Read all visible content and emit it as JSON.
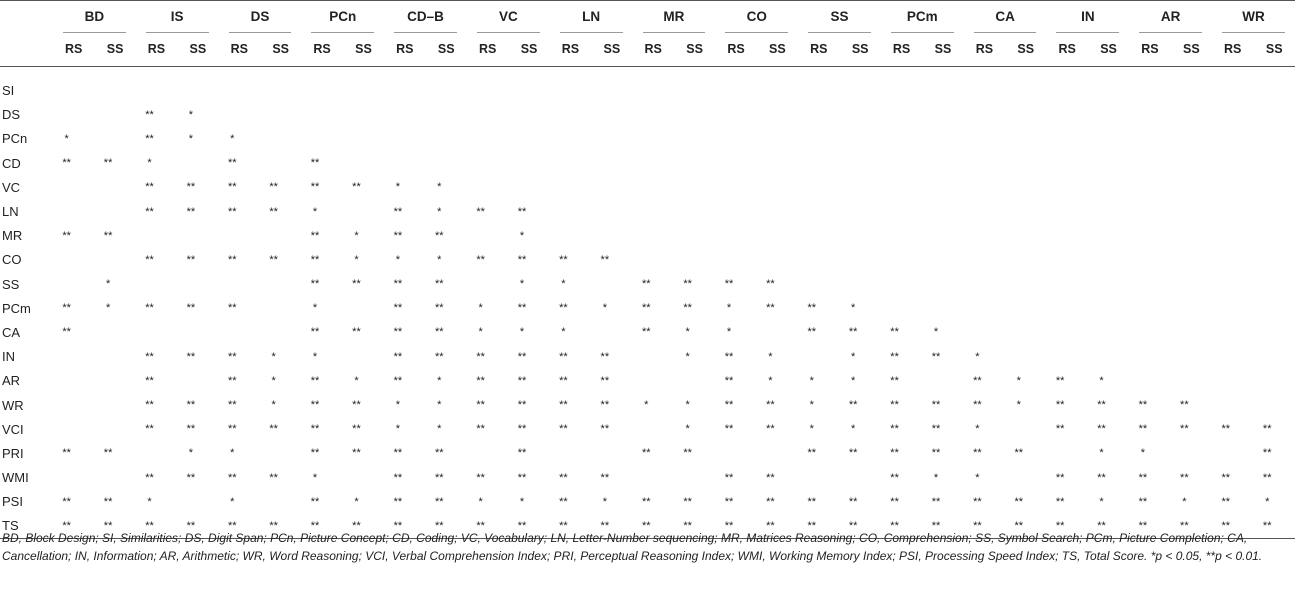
{
  "columns": [
    "BD",
    "IS",
    "DS",
    "PCn",
    "CD–B",
    "VC",
    "LN",
    "MR",
    "CO",
    "SS",
    "PCm",
    "CA",
    "IN",
    "AR",
    "WR"
  ],
  "sub_headers": [
    "RS",
    "SS"
  ],
  "rows": [
    {
      "label": "SI",
      "cells": [
        "",
        "",
        "",
        "",
        "",
        "",
        "",
        "",
        "",
        "",
        "",
        "",
        "",
        "",
        "",
        "",
        "",
        "",
        "",
        "",
        "",
        "",
        "",
        "",
        "",
        "",
        "",
        "",
        "",
        ""
      ]
    },
    {
      "label": "DS",
      "cells": [
        "",
        "",
        "**",
        "*",
        "",
        "",
        "",
        "",
        "",
        "",
        "",
        "",
        "",
        "",
        "",
        "",
        "",
        "",
        "",
        "",
        "",
        "",
        "",
        "",
        "",
        "",
        "",
        "",
        "",
        ""
      ]
    },
    {
      "label": "PCn",
      "cells": [
        "*",
        "",
        "**",
        "*",
        "*",
        "",
        "",
        "",
        "",
        "",
        "",
        "",
        "",
        "",
        "",
        "",
        "",
        "",
        "",
        "",
        "",
        "",
        "",
        "",
        "",
        "",
        "",
        "",
        "",
        ""
      ]
    },
    {
      "label": "CD",
      "cells": [
        "**",
        "**",
        "*",
        "",
        "**",
        "",
        "**",
        "",
        "",
        "",
        "",
        "",
        "",
        "",
        "",
        "",
        "",
        "",
        "",
        "",
        "",
        "",
        "",
        "",
        "",
        "",
        "",
        "",
        "",
        ""
      ]
    },
    {
      "label": "VC",
      "cells": [
        "",
        "",
        "**",
        "**",
        "**",
        "**",
        "**",
        "**",
        "*",
        "*",
        "",
        "",
        "",
        "",
        "",
        "",
        "",
        "",
        "",
        "",
        "",
        "",
        "",
        "",
        "",
        "",
        "",
        "",
        "",
        ""
      ]
    },
    {
      "label": "LN",
      "cells": [
        "",
        "",
        "**",
        "**",
        "**",
        "**",
        "*",
        "",
        "**",
        "*",
        "**",
        "**",
        "",
        "",
        "",
        "",
        "",
        "",
        "",
        "",
        "",
        "",
        "",
        "",
        "",
        "",
        "",
        "",
        "",
        ""
      ]
    },
    {
      "label": "MR",
      "cells": [
        "**",
        "**",
        "",
        "",
        "",
        "",
        "**",
        "*",
        "**",
        "**",
        "",
        "*",
        "",
        "",
        "",
        "",
        "",
        "",
        "",
        "",
        "",
        "",
        "",
        "",
        "",
        "",
        "",
        "",
        "",
        ""
      ]
    },
    {
      "label": "CO",
      "cells": [
        "",
        "",
        "**",
        "**",
        "**",
        "**",
        "**",
        "*",
        "*",
        "*",
        "**",
        "**",
        "**",
        "**",
        "",
        "",
        "",
        "",
        "",
        "",
        "",
        "",
        "",
        "",
        "",
        "",
        "",
        "",
        "",
        ""
      ]
    },
    {
      "label": "SS",
      "cells": [
        "",
        "*",
        "",
        "",
        "",
        "",
        "**",
        "**",
        "**",
        "**",
        "",
        "*",
        "*",
        "",
        "**",
        "**",
        "**",
        "**",
        "",
        "",
        "",
        "",
        "",
        "",
        "",
        "",
        "",
        "",
        "",
        ""
      ]
    },
    {
      "label": "PCm",
      "cells": [
        "**",
        "*",
        "**",
        "**",
        "**",
        "",
        "*",
        "",
        "**",
        "**",
        "*",
        "**",
        "**",
        "*",
        "**",
        "**",
        "*",
        "**",
        "**",
        "*",
        "",
        "",
        "",
        "",
        "",
        "",
        "",
        "",
        "",
        ""
      ]
    },
    {
      "label": "CA",
      "cells": [
        "**",
        "",
        "",
        "",
        "",
        "",
        "**",
        "**",
        "**",
        "**",
        "*",
        "*",
        "*",
        "",
        "**",
        "*",
        "*",
        "",
        "**",
        "**",
        "**",
        "*",
        "",
        "",
        "",
        "",
        "",
        "",
        "",
        ""
      ]
    },
    {
      "label": "IN",
      "cells": [
        "",
        "",
        "**",
        "**",
        "**",
        "*",
        "*",
        "",
        "**",
        "**",
        "**",
        "**",
        "**",
        "**",
        "",
        "*",
        "**",
        "*",
        "",
        "*",
        "**",
        "**",
        "*",
        "",
        "",
        "",
        "",
        "",
        "",
        ""
      ]
    },
    {
      "label": "AR",
      "cells": [
        "",
        "",
        "**",
        "",
        "**",
        "*",
        "**",
        "*",
        "**",
        "*",
        "**",
        "**",
        "**",
        "**",
        "",
        "",
        "**",
        "*",
        "*",
        "*",
        "**",
        "",
        "**",
        "*",
        "**",
        "*",
        "",
        "",
        "",
        ""
      ]
    },
    {
      "label": "WR",
      "cells": [
        "",
        "",
        "**",
        "**",
        "**",
        "*",
        "**",
        "**",
        "*",
        "*",
        "**",
        "**",
        "**",
        "**",
        "*",
        "*",
        "**",
        "**",
        "*",
        "**",
        "**",
        "**",
        "**",
        "*",
        "**",
        "**",
        "**",
        "**",
        "",
        ""
      ]
    },
    {
      "label": "VCI",
      "cells": [
        "",
        "",
        "**",
        "**",
        "**",
        "**",
        "**",
        "**",
        "*",
        "*",
        "**",
        "**",
        "**",
        "**",
        "",
        "*",
        "**",
        "**",
        "*",
        "*",
        "**",
        "**",
        "*",
        "",
        "**",
        "**",
        "**",
        "**",
        "**",
        "**"
      ]
    },
    {
      "label": "PRI",
      "cells": [
        "**",
        "**",
        "",
        "*",
        "*",
        "",
        "**",
        "**",
        "**",
        "**",
        "",
        "**",
        "",
        "",
        "**",
        "**",
        "",
        "",
        "**",
        "**",
        "**",
        "**",
        "**",
        "**",
        "",
        "*",
        "*",
        "",
        "",
        "**"
      ]
    },
    {
      "label": "WMI",
      "cells": [
        "",
        "",
        "**",
        "**",
        "**",
        "**",
        "*",
        "",
        "**",
        "**",
        "**",
        "**",
        "**",
        "**",
        "",
        "",
        "**",
        "**",
        "",
        "",
        "**",
        "*",
        "*",
        "",
        "**",
        "**",
        "**",
        "**",
        "**",
        "**"
      ]
    },
    {
      "label": "PSI",
      "cells": [
        "**",
        "**",
        "*",
        "",
        "*",
        "",
        "**",
        "*",
        "**",
        "**",
        "*",
        "*",
        "**",
        "*",
        "**",
        "**",
        "**",
        "**",
        "**",
        "**",
        "**",
        "**",
        "**",
        "**",
        "**",
        "*",
        "**",
        "*",
        "**",
        "*"
      ]
    },
    {
      "label": "TS",
      "cells": [
        "**",
        "**",
        "**",
        "**",
        "**",
        "**",
        "**",
        "**",
        "**",
        "**",
        "**",
        "**",
        "**",
        "**",
        "**",
        "**",
        "**",
        "**",
        "**",
        "**",
        "**",
        "**",
        "**",
        "**",
        "**",
        "**",
        "**",
        "**",
        "**",
        "**"
      ]
    }
  ],
  "footnote": "BD, Block Design; SI, Similarities; DS, Digit Span; PCn, Picture Concept; CD, Coding; VC, Vocabulary; LN, Letter-Number sequencing; MR, Matrices Reasoning; CO, Comprehension; SS, Symbol Search; PCm, Picture Completion; CA, Cancellation; IN, Information; AR, Arithmetic; WR, Word Reasoning; VCI, Verbal Comprehension Index; PRI, Perceptual Reasoning Index; WMI, Working Memory Index; PSI, Processing Speed Index; TS, Total Score. *p < 0.05, **p < 0.01."
}
